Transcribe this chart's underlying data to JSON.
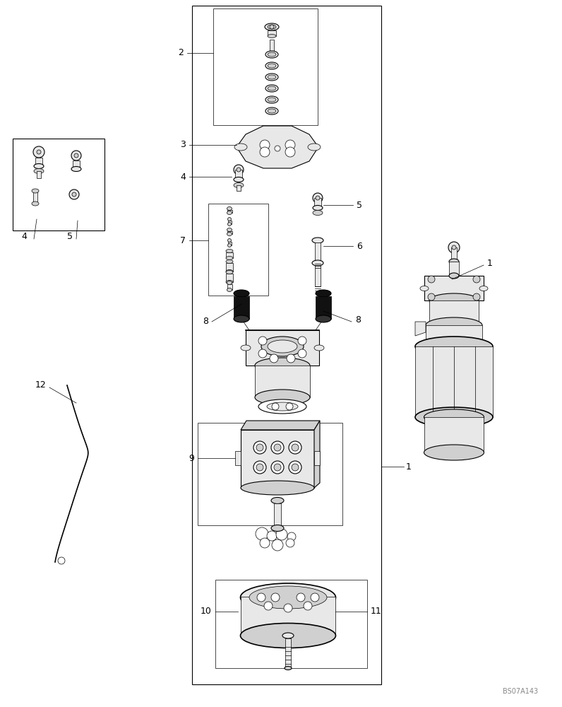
{
  "bg_color": "#ffffff",
  "lc": "#000000",
  "fg": "#e8e8e8",
  "fg2": "#d0d0d0",
  "blk": "#111111",
  "watermark": "BS07A143",
  "fig_width": 7.96,
  "fig_height": 10.0,
  "dpi": 100,
  "labels": {
    "1a": "1",
    "1b": "1",
    "2": "2",
    "3": "3",
    "4a": "4",
    "4b": "4",
    "5a": "5",
    "5b": "5",
    "6": "6",
    "7": "7",
    "8a": "8",
    "8b": "8",
    "9": "9",
    "10": "10",
    "11": "11",
    "12": "12"
  }
}
